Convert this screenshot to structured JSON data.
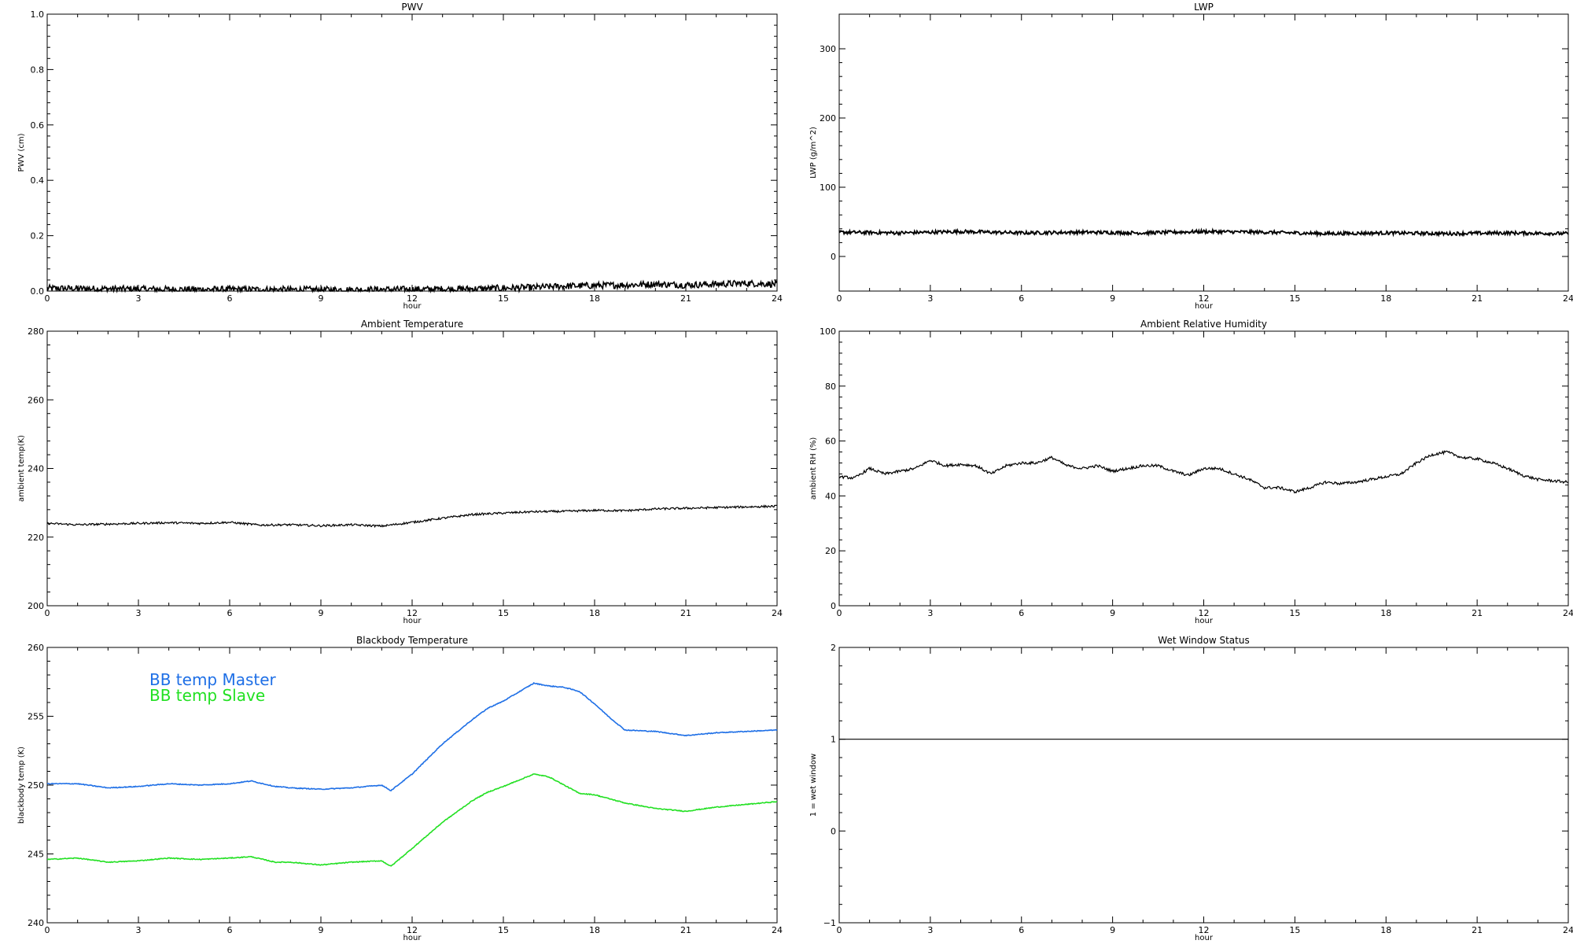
{
  "chart_data": [
    {
      "type": "line",
      "title": "PWV",
      "xlabel": "hour",
      "ylabel": "PWV (cm)",
      "xlim": [
        0,
        24
      ],
      "ylim": [
        0,
        1
      ],
      "xticks": [
        "0",
        "3",
        "6",
        "9",
        "12",
        "15",
        "18",
        "21",
        "24"
      ],
      "yticks": [
        "0.0",
        "0.2",
        "0.4",
        "0.6",
        "0.8",
        "1.0"
      ],
      "series": [
        {
          "color": "#000000",
          "noise": 0.012,
          "width": 1.6,
          "x": [
            0,
            2,
            4,
            6,
            8,
            10,
            12,
            14,
            16,
            17,
            18,
            19,
            20,
            21,
            22,
            23,
            24
          ],
          "y": [
            0.01,
            0.008,
            0.006,
            0.006,
            0.005,
            0.005,
            0.006,
            0.008,
            0.013,
            0.018,
            0.02,
            0.022,
            0.025,
            0.022,
            0.025,
            0.028,
            0.025
          ]
        }
      ]
    },
    {
      "type": "line",
      "title": "LWP",
      "xlabel": "hour",
      "ylabel": "LWP (g/m^2)",
      "xlim": [
        0,
        24
      ],
      "ylim": [
        -50,
        350
      ],
      "xticks": [
        "0",
        "3",
        "6",
        "9",
        "12",
        "15",
        "18",
        "21",
        "24"
      ],
      "yticks": [
        "0",
        "100",
        "200",
        "300"
      ],
      "ytick_values": [
        0,
        100,
        200,
        300
      ],
      "series": [
        {
          "color": "#000000",
          "noise": 2.5,
          "width": 1.8,
          "x": [
            0,
            2,
            4,
            6,
            8,
            10,
            12,
            14,
            16,
            18,
            20,
            22,
            24
          ],
          "y": [
            35,
            34,
            36,
            34,
            35,
            34,
            36,
            35,
            33,
            34,
            33,
            34,
            33
          ]
        }
      ]
    },
    {
      "type": "line",
      "title": "Ambient Temperature",
      "xlabel": "hour",
      "ylabel": "ambient temp(K)",
      "xlim": [
        0,
        24
      ],
      "ylim": [
        200,
        280
      ],
      "xticks": [
        "0",
        "3",
        "6",
        "9",
        "12",
        "15",
        "18",
        "21",
        "24"
      ],
      "yticks": [
        "200",
        "220",
        "240",
        "260",
        "280"
      ],
      "ytick_values": [
        200,
        220,
        240,
        260,
        280
      ],
      "series": [
        {
          "color": "#000000",
          "noise": 0.3,
          "width": 1.2,
          "x": [
            0,
            1,
            2,
            3,
            4,
            5,
            6,
            7,
            8,
            9,
            10,
            11,
            12,
            13,
            14,
            15,
            16,
            17,
            18,
            19,
            20,
            21,
            22,
            23,
            24
          ],
          "y": [
            224,
            223.6,
            223.8,
            224,
            224.2,
            224,
            224.3,
            223.5,
            223.6,
            223.3,
            223.6,
            223.2,
            224.3,
            225.5,
            226.6,
            227,
            227.4,
            227.5,
            227.8,
            227.7,
            228.2,
            228.4,
            228.6,
            228.8,
            229
          ]
        }
      ]
    },
    {
      "type": "line",
      "title": "Ambient Relative Humidity",
      "xlabel": "hour",
      "ylabel": "ambient RH (%)",
      "xlim": [
        0,
        24
      ],
      "ylim": [
        0,
        100
      ],
      "xticks": [
        "0",
        "3",
        "6",
        "9",
        "12",
        "15",
        "18",
        "21",
        "24"
      ],
      "yticks": [
        "0",
        "20",
        "40",
        "60",
        "80",
        "100"
      ],
      "ytick_values": [
        0,
        20,
        40,
        60,
        80,
        100
      ],
      "series": [
        {
          "color": "#000000",
          "noise": 0.5,
          "width": 1.2,
          "x": [
            0,
            0.5,
            1,
            1.5,
            2,
            2.5,
            3,
            3.5,
            4,
            4.5,
            5,
            5.5,
            6,
            6.5,
            7,
            7.5,
            8,
            8.5,
            9,
            9.5,
            10,
            10.5,
            11,
            11.5,
            12,
            12.5,
            13,
            13.5,
            14,
            14.5,
            15,
            15.5,
            16,
            16.5,
            17,
            17.5,
            18,
            18.5,
            19,
            19.5,
            20,
            20.5,
            21,
            21.5,
            22,
            22.5,
            23,
            23.5,
            24
          ],
          "y": [
            47,
            46.5,
            50,
            48,
            49,
            50,
            53,
            51,
            51.5,
            51,
            48,
            51,
            52,
            52,
            54,
            51,
            50,
            51,
            49,
            50,
            51,
            51,
            49,
            47.5,
            50,
            50,
            48,
            46,
            43,
            43,
            41.5,
            43,
            45,
            44.5,
            45,
            46,
            47,
            48,
            52,
            55,
            56,
            54,
            53.5,
            52,
            50,
            47.5,
            46,
            45.5,
            45
          ]
        }
      ]
    },
    {
      "type": "line",
      "title": "Blackbody Temperature",
      "xlabel": "hour",
      "ylabel": "blackbody temp (K)",
      "xlim": [
        0,
        24
      ],
      "ylim": [
        240,
        260
      ],
      "xticks": [
        "0",
        "3",
        "6",
        "9",
        "12",
        "15",
        "18",
        "21",
        "24"
      ],
      "yticks": [
        "240",
        "245",
        "250",
        "255",
        "260"
      ],
      "ytick_values": [
        240,
        245,
        250,
        255,
        260
      ],
      "legend_position": "top-left",
      "series": [
        {
          "name": "BB temp Master",
          "color": "#1e6fe6",
          "noise": 0.03,
          "width": 1.6,
          "x": [
            0,
            1,
            2,
            3,
            4,
            5,
            6,
            6.7,
            7.5,
            8,
            9,
            10,
            11,
            11.3,
            12,
            13,
            14,
            14.5,
            15,
            16,
            16.5,
            17,
            17.5,
            18,
            18.5,
            19,
            20,
            21,
            22,
            23,
            24
          ],
          "y": [
            250.1,
            250.1,
            249.8,
            249.9,
            250.1,
            250,
            250.1,
            250.3,
            249.9,
            249.8,
            249.7,
            249.8,
            250,
            249.6,
            250.8,
            253,
            254.8,
            255.6,
            256.1,
            257.4,
            257.2,
            257.1,
            256.8,
            255.9,
            254.9,
            254,
            253.9,
            253.6,
            253.8,
            253.9,
            254
          ]
        },
        {
          "name": "BB temp Slave",
          "color": "#22e022",
          "noise": 0.03,
          "width": 1.6,
          "x": [
            0,
            1,
            2,
            3,
            4,
            5,
            6,
            6.7,
            7.5,
            8,
            9,
            10,
            11,
            11.3,
            12,
            13,
            14,
            14.5,
            15,
            16,
            16.5,
            17,
            17.5,
            18,
            18.5,
            19,
            20,
            21,
            22,
            23,
            24
          ],
          "y": [
            244.6,
            244.7,
            244.4,
            244.5,
            244.7,
            244.6,
            244.7,
            244.8,
            244.4,
            244.4,
            244.2,
            244.4,
            244.5,
            244.1,
            245.4,
            247.3,
            248.9,
            249.5,
            249.9,
            250.8,
            250.6,
            250,
            249.4,
            249.3,
            249,
            248.7,
            248.3,
            248.1,
            248.4,
            248.6,
            248.8
          ]
        }
      ]
    },
    {
      "type": "line",
      "title": "Wet Window Status",
      "xlabel": "hour",
      "ylabel": "1 = wet window",
      "xlim": [
        0,
        24
      ],
      "ylim": [
        -1,
        2
      ],
      "xticks": [
        "0",
        "3",
        "6",
        "9",
        "12",
        "15",
        "18",
        "21",
        "24"
      ],
      "yticks": [
        "−1",
        "0",
        "1",
        "2"
      ],
      "ytick_values": [
        -1,
        0,
        1,
        2
      ],
      "series": [
        {
          "color": "#000000",
          "noise": 0,
          "width": 1.2,
          "x": [
            0,
            24
          ],
          "y": [
            1,
            1
          ]
        }
      ]
    }
  ]
}
